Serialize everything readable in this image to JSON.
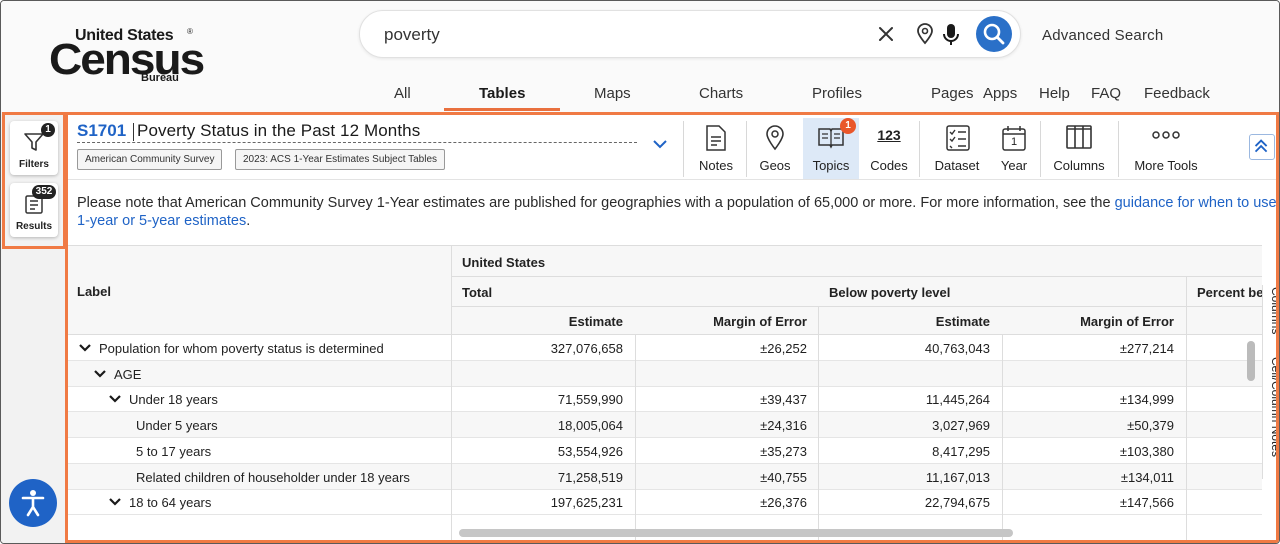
{
  "logo": {
    "line1": "United States",
    "registered": "®",
    "line2": "Census",
    "line3": "Bureau"
  },
  "search": {
    "value": "poverty",
    "advanced_label": "Advanced Search"
  },
  "nav": {
    "tabs": [
      {
        "label": "All"
      },
      {
        "label": "Tables",
        "active": true
      },
      {
        "label": "Maps"
      },
      {
        "label": "Charts"
      },
      {
        "label": "Profiles"
      }
    ],
    "links": [
      {
        "label": "Pages"
      },
      {
        "label": "Apps"
      },
      {
        "label": "Help"
      },
      {
        "label": "FAQ"
      },
      {
        "label": "Feedback"
      }
    ]
  },
  "sidebar": {
    "filters": {
      "label": "Filters",
      "badge": "1"
    },
    "results": {
      "label": "Results",
      "badge": "352"
    }
  },
  "table_header": {
    "id": "S1701",
    "title": "Poverty Status in the Past 12 Months",
    "chips": [
      "American Community Survey",
      "2023: ACS 1-Year Estimates Subject Tables"
    ]
  },
  "tools": [
    {
      "label": "Notes",
      "icon": "notes-icon"
    },
    {
      "label": "Geos",
      "icon": "map-pin-icon"
    },
    {
      "label": "Topics",
      "icon": "book-icon",
      "badge": "1",
      "selected": true
    },
    {
      "label": "Codes",
      "icon": "codes-icon",
      "glyph": "123"
    },
    {
      "label": "Dataset",
      "icon": "checklist-icon"
    },
    {
      "label": "Year",
      "icon": "calendar-icon",
      "glyph": "1"
    },
    {
      "label": "Columns",
      "icon": "columns-icon"
    },
    {
      "label": "More Tools",
      "icon": "more-dots-icon"
    }
  ],
  "notice": {
    "text": "Please note that American Community Survey 1-Year estimates are published for geographies with a population of 65,000 or more. For more information, see the ",
    "link": "guidance for when to use 1-year or 5-year estimates",
    "end": "."
  },
  "grid": {
    "label_header": "Label",
    "geo": "United States",
    "groups": [
      "Total",
      "Below poverty level",
      "Percent be"
    ],
    "subcols": [
      "Estimate",
      "Margin of Error",
      "Estimate",
      "Margin of Error"
    ],
    "rows": [
      {
        "label": "Population for whom poverty status is determined",
        "level": 0,
        "expand": true,
        "values": [
          "327,076,658",
          "±26,252",
          "40,763,043",
          "±277,214"
        ]
      },
      {
        "label": "AGE",
        "level": 1,
        "expand": true,
        "values": [
          "",
          "",
          "",
          ""
        ]
      },
      {
        "label": "Under 18 years",
        "level": 2,
        "expand": true,
        "values": [
          "71,559,990",
          "±39,437",
          "11,445,264",
          "±134,999"
        ]
      },
      {
        "label": "Under 5 years",
        "level": 3,
        "expand": false,
        "values": [
          "18,005,064",
          "±24,316",
          "3,027,969",
          "±50,379"
        ]
      },
      {
        "label": "5 to 17 years",
        "level": 3,
        "expand": false,
        "values": [
          "53,554,926",
          "±35,273",
          "8,417,295",
          "±103,380"
        ]
      },
      {
        "label": "Related children of householder under 18 years",
        "level": 3,
        "expand": false,
        "values": [
          "71,258,519",
          "±40,755",
          "11,167,013",
          "±134,011"
        ]
      },
      {
        "label": "18 to 64 years",
        "level": 2,
        "expand": true,
        "values": [
          "197,625,231",
          "±26,376",
          "22,794,675",
          "±147,566"
        ]
      }
    ]
  },
  "side_tabs": [
    "Columns",
    "Cell/Column Notes"
  ],
  "colors": {
    "accent": "#f07a44",
    "link": "#1f63c6",
    "selected_tool": "#dde9f7",
    "badge": "#e9572b"
  }
}
